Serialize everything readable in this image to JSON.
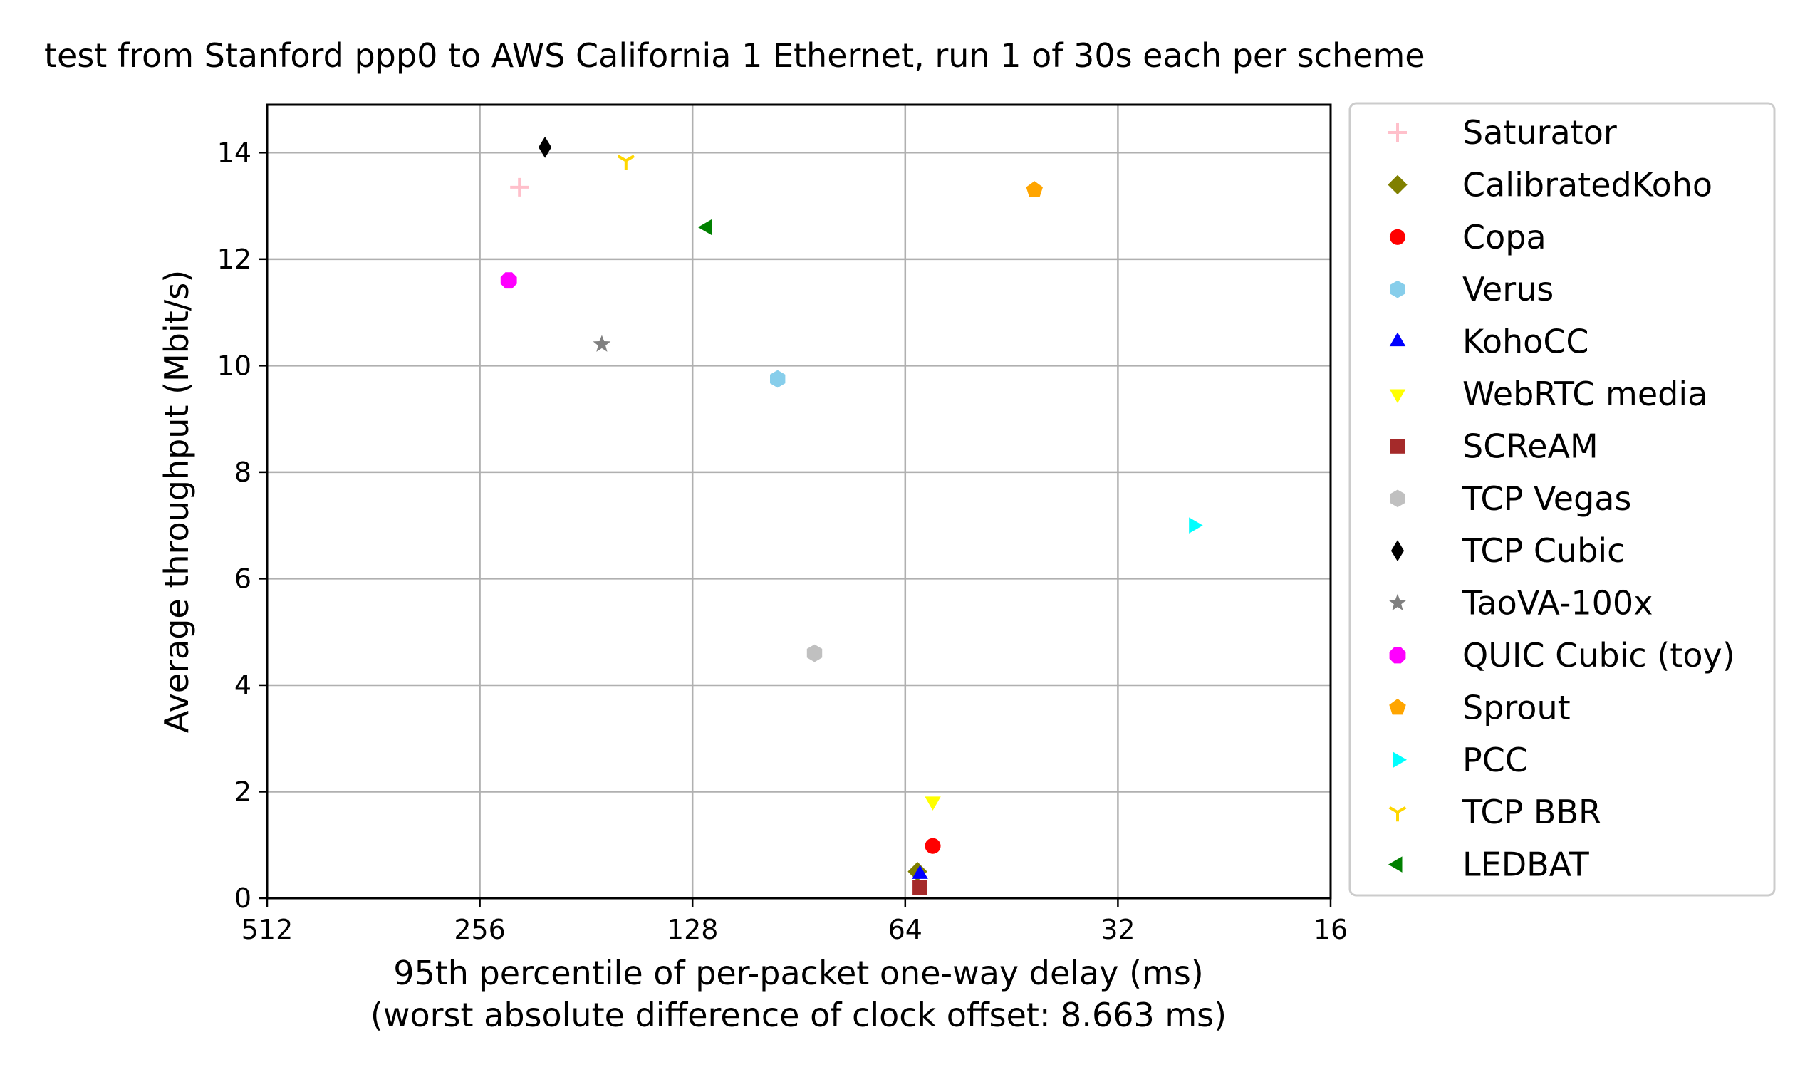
{
  "chart_data": {
    "type": "scatter",
    "title": "test from Stanford ppp0 to AWS California 1 Ethernet, run 1 of 30s each per scheme",
    "xlabel": "95th percentile of per-packet one-way delay (ms)",
    "xlabel2": "(worst absolute difference of clock offset: 8.663 ms)",
    "ylabel": "Average throughput (Mbit/s)",
    "x_scale": "log2",
    "x_inverted": true,
    "xlim": [
      512,
      16
    ],
    "ylim": [
      0,
      14.9
    ],
    "xticks": [
      512,
      256,
      128,
      64,
      32,
      16
    ],
    "xtick_labels": [
      "512",
      "256",
      "128",
      "64",
      "32",
      "16"
    ],
    "yticks": [
      0,
      2,
      4,
      6,
      8,
      10,
      12,
      14
    ],
    "ytick_labels": [
      "0",
      "2",
      "4",
      "6",
      "8",
      "10",
      "12",
      "14"
    ],
    "grid": true,
    "legend_position": "outside-right",
    "series": [
      {
        "name": "Saturator",
        "marker": "plus",
        "color": "#ffc0cb",
        "x": 225,
        "y": 13.35
      },
      {
        "name": "CalibratedKoho",
        "marker": "diamond",
        "color": "#808000",
        "x": 61.5,
        "y": 0.5
      },
      {
        "name": "Copa",
        "marker": "circle",
        "color": "#ff0000",
        "x": 58.5,
        "y": 0.98
      },
      {
        "name": "Verus",
        "marker": "hexagon",
        "color": "#87ceeb",
        "x": 97,
        "y": 9.75
      },
      {
        "name": "KohoCC",
        "marker": "triangle-up",
        "color": "#0000ff",
        "x": 61,
        "y": 0.45
      },
      {
        "name": "WebRTC media",
        "marker": "triangle-down",
        "color": "#ffff00",
        "x": 58.5,
        "y": 1.82
      },
      {
        "name": "SCReAM",
        "marker": "square",
        "color": "#a52a2a",
        "x": 61,
        "y": 0.2
      },
      {
        "name": "TCP Vegas",
        "marker": "hexagon",
        "color": "#c0c0c0",
        "x": 86,
        "y": 4.6
      },
      {
        "name": "TCP Cubic",
        "marker": "thin-diamond",
        "color": "#000000",
        "x": 207,
        "y": 14.1
      },
      {
        "name": "TaoVA-100x",
        "marker": "star",
        "color": "#808080",
        "x": 172,
        "y": 10.4
      },
      {
        "name": "QUIC Cubic (toy)",
        "marker": "octagon",
        "color": "#ff00ff",
        "x": 233,
        "y": 11.6
      },
      {
        "name": "Sprout",
        "marker": "pentagon",
        "color": "#ffa500",
        "x": 42,
        "y": 13.3
      },
      {
        "name": "PCC",
        "marker": "triangle-right",
        "color": "#00ffff",
        "x": 25,
        "y": 7.0
      },
      {
        "name": "TCP BBR",
        "marker": "tri-down",
        "color": "#ffd700",
        "x": 159,
        "y": 13.85
      },
      {
        "name": "LEDBAT",
        "marker": "triangle-left",
        "color": "#008000",
        "x": 122,
        "y": 12.6
      }
    ]
  }
}
